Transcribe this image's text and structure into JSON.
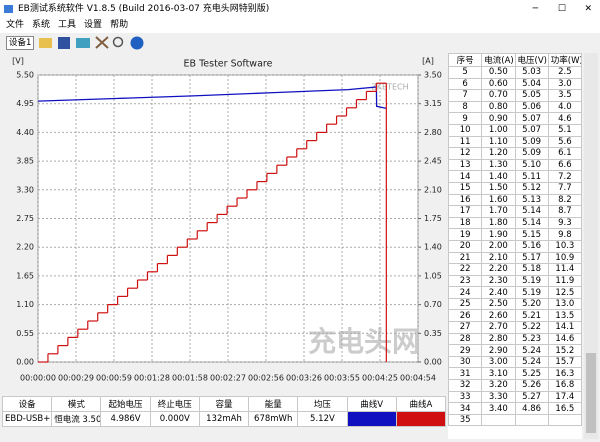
{
  "window": {
    "title": "EB测试系统软件 V1.8.5 (Build 2016-03-07 充电头网特别版)",
    "menu": [
      "文件",
      "系统",
      "工具",
      "设置",
      "帮助"
    ],
    "device": "设备1"
  },
  "chart_data": {
    "type": "line",
    "title": "EB Tester Software",
    "y_label": "[V]",
    "y2_label": "[A]",
    "annotations": [
      "ZKETECH",
      "充电头网"
    ],
    "xlim": [
      0,
      294
    ],
    "xticks": [
      {
        "value": 0,
        "label": "00:00:00"
      },
      {
        "value": 29.4,
        "label": "00:00:29"
      },
      {
        "value": 58.8,
        "label": "00:00:59"
      },
      {
        "value": 88.2,
        "label": "00:01:28"
      },
      {
        "value": 117.6,
        "label": "00:01:58"
      },
      {
        "value": 147,
        "label": "00:02:27"
      },
      {
        "value": 176.4,
        "label": "00:02:56"
      },
      {
        "value": 205.8,
        "label": "00:03:26"
      },
      {
        "value": 235.2,
        "label": "00:03:55"
      },
      {
        "value": 264.6,
        "label": "00:04:25"
      },
      {
        "value": 294,
        "label": "00:04:54"
      }
    ],
    "ylim": [
      0,
      5.5
    ],
    "yticks": [
      {
        "value": 0,
        "label": "0.00"
      },
      {
        "value": 0.55,
        "label": "0.55"
      },
      {
        "value": 1.1,
        "label": "1.10"
      },
      {
        "value": 1.65,
        "label": "1.65"
      },
      {
        "value": 2.2,
        "label": "2.20"
      },
      {
        "value": 2.75,
        "label": "2.75"
      },
      {
        "value": 3.3,
        "label": "3.30"
      },
      {
        "value": 3.85,
        "label": "3.85"
      },
      {
        "value": 4.4,
        "label": "4.40"
      },
      {
        "value": 4.95,
        "label": "4.95"
      },
      {
        "value": 5.5,
        "label": "5.50"
      }
    ],
    "y2lim": [
      0,
      3.5
    ],
    "y2ticks": [
      {
        "value": 0,
        "label": "0.00"
      },
      {
        "value": 0.35,
        "label": "0.35"
      },
      {
        "value": 0.7,
        "label": "0.70"
      },
      {
        "value": 1.05,
        "label": "1.05"
      },
      {
        "value": 1.4,
        "label": "1.40"
      },
      {
        "value": 1.75,
        "label": "1.75"
      },
      {
        "value": 2.1,
        "label": "2.10"
      },
      {
        "value": 2.45,
        "label": "2.45"
      },
      {
        "value": 2.8,
        "label": "2.80"
      },
      {
        "value": 3.15,
        "label": "3.15"
      },
      {
        "value": 3.5,
        "label": "3.50"
      }
    ],
    "grid": true,
    "series": [
      {
        "name": "曲线V",
        "color": "#1010c0",
        "x": [
          0,
          60,
          120,
          180,
          240,
          261.8,
          262,
          266,
          269.5
        ],
        "values": [
          5.0,
          5.05,
          5.1,
          5.16,
          5.22,
          5.27,
          4.9,
          4.88,
          4.86
        ]
      },
      {
        "name": "曲线A",
        "color": "#d01010",
        "axis": "y2",
        "step": true,
        "x": [
          0,
          7.7,
          15.4,
          23.1,
          30.8,
          38.5,
          46.2,
          53.9,
          61.6,
          69.3,
          77,
          84.7,
          92.4,
          100.1,
          107.8,
          115.5,
          123.2,
          130.9,
          138.6,
          146.3,
          154,
          161.7,
          169.4,
          177.1,
          184.8,
          192.5,
          200.2,
          207.9,
          215.6,
          223.3,
          231,
          238.7,
          246.4,
          254.1,
          261.8,
          269.5
        ],
        "values": [
          0,
          0.1,
          0.2,
          0.3,
          0.4,
          0.5,
          0.6,
          0.7,
          0.8,
          0.9,
          1.0,
          1.1,
          1.2,
          1.3,
          1.4,
          1.5,
          1.6,
          1.7,
          1.8,
          1.9,
          2.0,
          2.1,
          2.2,
          2.3,
          2.4,
          2.5,
          2.6,
          2.7,
          2.8,
          2.9,
          3.0,
          3.1,
          3.2,
          3.3,
          3.4,
          0
        ]
      }
    ]
  },
  "summary_table": {
    "headers": [
      "设备",
      "模式",
      "起始电压",
      "终止电压",
      "容量",
      "能量",
      "均压"
    ],
    "rows": [
      [
        "EBD-USB+",
        "恒电流 3.50A 0.80V",
        "4.986V",
        "0.000V",
        "132mAh",
        "678mWh",
        "5.12V"
      ]
    ]
  },
  "data_table": {
    "headers": [
      "序号",
      "电流(A)",
      "电压(V)",
      "功率(W)"
    ],
    "rows": [
      [
        "5",
        "0.50",
        "5.03",
        "2.5"
      ],
      [
        "6",
        "0.60",
        "5.04",
        "3.0"
      ],
      [
        "7",
        "0.70",
        "5.05",
        "3.5"
      ],
      [
        "8",
        "0.80",
        "5.06",
        "4.0"
      ],
      [
        "9",
        "0.90",
        "5.07",
        "4.6"
      ],
      [
        "10",
        "1.00",
        "5.07",
        "5.1"
      ],
      [
        "11",
        "1.10",
        "5.09",
        "5.6"
      ],
      [
        "12",
        "1.20",
        "5.09",
        "6.1"
      ],
      [
        "13",
        "1.30",
        "5.10",
        "6.6"
      ],
      [
        "14",
        "1.40",
        "5.11",
        "7.2"
      ],
      [
        "15",
        "1.50",
        "5.12",
        "7.7"
      ],
      [
        "16",
        "1.60",
        "5.13",
        "8.2"
      ],
      [
        "17",
        "1.70",
        "5.14",
        "8.7"
      ],
      [
        "18",
        "1.80",
        "5.14",
        "9.3"
      ],
      [
        "19",
        "1.90",
        "5.15",
        "9.8"
      ],
      [
        "20",
        "2.00",
        "5.16",
        "10.3"
      ],
      [
        "21",
        "2.10",
        "5.17",
        "10.9"
      ],
      [
        "22",
        "2.20",
        "5.18",
        "11.4"
      ],
      [
        "23",
        "2.30",
        "5.19",
        "11.9"
      ],
      [
        "24",
        "2.40",
        "5.19",
        "12.5"
      ],
      [
        "25",
        "2.50",
        "5.20",
        "13.0"
      ],
      [
        "26",
        "2.60",
        "5.21",
        "13.5"
      ],
      [
        "27",
        "2.70",
        "5.22",
        "14.1"
      ],
      [
        "28",
        "2.80",
        "5.23",
        "14.6"
      ],
      [
        "29",
        "2.90",
        "5.24",
        "15.2"
      ],
      [
        "30",
        "3.00",
        "5.24",
        "15.7"
      ],
      [
        "31",
        "3.10",
        "5.25",
        "16.3"
      ],
      [
        "32",
        "3.20",
        "5.26",
        "16.8"
      ],
      [
        "33",
        "3.30",
        "5.27",
        "17.4"
      ],
      [
        "34",
        "3.40",
        "4.86",
        "16.5"
      ],
      [
        "35"
      ]
    ]
  }
}
